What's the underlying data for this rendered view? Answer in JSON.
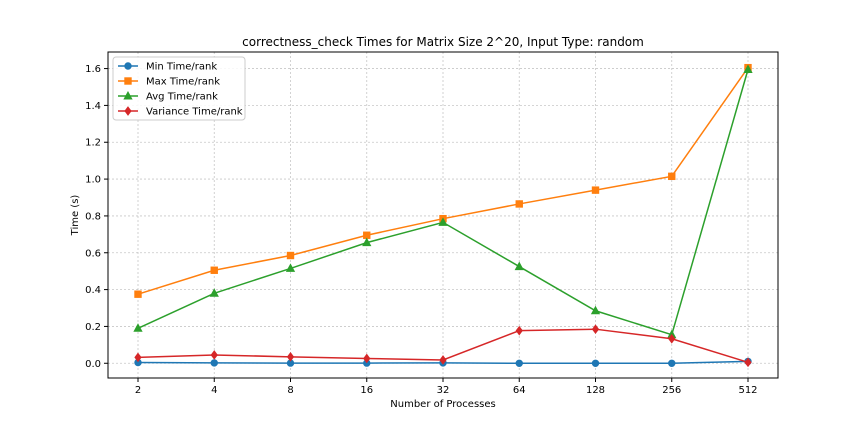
{
  "chart_data": {
    "type": "line",
    "title": "correctness_check Times for Matrix Size 2^20, Input Type: random",
    "xlabel": "Number of Processes",
    "ylabel": "Time (s)",
    "categories": [
      "2",
      "4",
      "8",
      "16",
      "32",
      "64",
      "128",
      "256",
      "512"
    ],
    "ylim": [
      -0.08,
      1.69
    ],
    "yticks": [
      "0.0",
      "0.2",
      "0.4",
      "0.6",
      "0.8",
      "1.0",
      "1.2",
      "1.4",
      "1.6"
    ],
    "ytick_values": [
      0.0,
      0.2,
      0.4,
      0.6,
      0.8,
      1.0,
      1.2,
      1.4,
      1.6
    ],
    "grid": true,
    "legend_position": "top-left",
    "series": [
      {
        "name": "Min Time/rank",
        "color": "#1f77b4",
        "marker": "circle",
        "values": [
          0.004,
          0.002,
          0.001,
          0.001,
          0.002,
          0.0,
          0.0,
          0.0,
          0.01
        ]
      },
      {
        "name": "Max Time/rank",
        "color": "#ff7f0e",
        "marker": "square",
        "values": [
          0.375,
          0.505,
          0.585,
          0.695,
          0.785,
          0.865,
          0.94,
          1.015,
          1.605
        ]
      },
      {
        "name": "Avg Time/rank",
        "color": "#2ca02c",
        "marker": "triangle",
        "values": [
          0.19,
          0.38,
          0.515,
          0.655,
          0.765,
          0.525,
          0.285,
          0.155,
          1.595
        ]
      },
      {
        "name": "Variance Time/rank",
        "color": "#d62728",
        "marker": "diamond",
        "values": [
          0.032,
          0.045,
          0.035,
          0.026,
          0.018,
          0.177,
          0.185,
          0.133,
          0.005
        ]
      }
    ]
  }
}
